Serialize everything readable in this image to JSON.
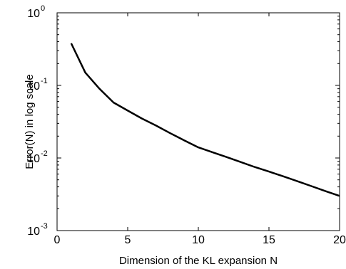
{
  "chart_data": {
    "type": "line",
    "title": "",
    "xlabel": "Dimension of the KL expansion N",
    "ylabel": "Error(N) in log scale",
    "xlim": [
      0,
      20
    ],
    "ylim": [
      0.001,
      1
    ],
    "yscale": "log",
    "grid": false,
    "legend": "none",
    "x_ticks": [
      0,
      5,
      10,
      15,
      20
    ],
    "x_tick_labels": [
      "0",
      "5",
      "10",
      "15",
      "20"
    ],
    "y_ticks": [
      0.001,
      0.01,
      0.1,
      1
    ],
    "y_tick_labels": [
      {
        "base": "10",
        "exp": "-3"
      },
      {
        "base": "10",
        "exp": "-2"
      },
      {
        "base": "10",
        "exp": "-1"
      },
      {
        "base": "10",
        "exp": "0"
      }
    ],
    "series": [
      {
        "color": "#000000",
        "x": [
          1,
          2,
          3,
          4,
          5,
          6,
          7,
          8,
          9,
          10,
          11,
          12,
          13,
          14,
          15,
          16,
          17,
          18,
          19,
          20
        ],
        "y": [
          0.38,
          0.15,
          0.09,
          0.058,
          0.045,
          0.035,
          0.028,
          0.022,
          0.0175,
          0.014,
          0.012,
          0.0103,
          0.0088,
          0.0075,
          0.0065,
          0.0056,
          0.0048,
          0.0041,
          0.0035,
          0.003
        ]
      }
    ]
  }
}
